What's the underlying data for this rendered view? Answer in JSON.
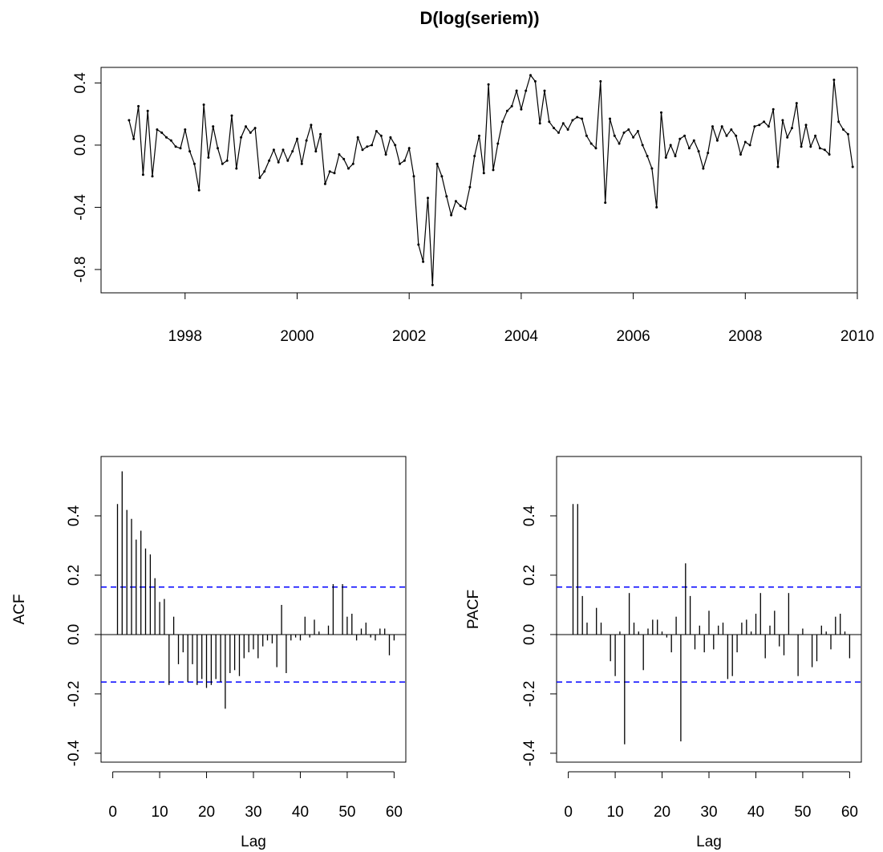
{
  "title": "D(log(seriem))",
  "colors": {
    "series": "#000000",
    "confidence_band": "#0000ff",
    "frame": "#000000"
  },
  "chart_data": [
    {
      "type": "line",
      "name": "time-series",
      "title": "D(log(seriem))",
      "xlabel": "",
      "ylabel": "",
      "xlim": [
        1996.5,
        2010
      ],
      "ylim": [
        -0.95,
        0.5
      ],
      "x_ticks": [
        "1998",
        "2000",
        "2002",
        "2004",
        "2006",
        "2008",
        "2010"
      ],
      "y_ticks": [
        "-0.8",
        "-0.4",
        "0.0",
        "0.4"
      ],
      "start": 1997.0,
      "frequency": 12,
      "markers": "small points",
      "values": [
        0.16,
        0.04,
        0.25,
        -0.19,
        0.22,
        -0.2,
        0.1,
        0.08,
        0.05,
        0.03,
        -0.01,
        -0.02,
        0.1,
        -0.04,
        -0.12,
        -0.29,
        0.26,
        -0.08,
        0.12,
        -0.02,
        -0.12,
        -0.1,
        0.19,
        -0.15,
        0.05,
        0.12,
        0.08,
        0.11,
        -0.21,
        -0.17,
        -0.1,
        -0.03,
        -0.11,
        -0.03,
        -0.1,
        -0.04,
        0.04,
        -0.12,
        0.03,
        0.13,
        -0.04,
        0.07,
        -0.25,
        -0.17,
        -0.18,
        -0.06,
        -0.09,
        -0.15,
        -0.12,
        0.05,
        -0.03,
        -0.01,
        0.0,
        0.09,
        0.06,
        -0.06,
        0.05,
        0.0,
        -0.12,
        -0.1,
        -0.02,
        -0.2,
        -0.64,
        -0.75,
        -0.34,
        -0.9,
        -0.12,
        -0.2,
        -0.33,
        -0.45,
        -0.36,
        -0.39,
        -0.41,
        -0.27,
        -0.07,
        0.06,
        -0.18,
        0.39,
        -0.16,
        0.01,
        0.15,
        0.22,
        0.25,
        0.35,
        0.23,
        0.35,
        0.45,
        0.41,
        0.14,
        0.35,
        0.15,
        0.11,
        0.08,
        0.14,
        0.1,
        0.16,
        0.18,
        0.17,
        0.06,
        0.01,
        -0.02,
        0.41,
        -0.37,
        0.17,
        0.06,
        0.01,
        0.08,
        0.1,
        0.05,
        0.09,
        0.0,
        -0.07,
        -0.15,
        -0.4,
        0.21,
        -0.08,
        0.0,
        -0.07,
        0.04,
        0.06,
        -0.02,
        0.03,
        -0.04,
        -0.15,
        -0.05,
        0.12,
        0.03,
        0.12,
        0.06,
        0.1,
        0.06,
        -0.06,
        0.02,
        0.0,
        0.12,
        0.13,
        0.15,
        0.12,
        0.23,
        -0.14,
        0.16,
        0.05,
        0.11,
        0.27,
        -0.01,
        0.13,
        -0.01,
        0.06,
        -0.02,
        -0.03,
        -0.06,
        0.42,
        0.15,
        0.1,
        0.07,
        -0.14
      ]
    },
    {
      "type": "bar",
      "name": "acf",
      "xlabel": "Lag",
      "ylabel": "ACF",
      "xlim": [
        -2.5,
        62.5
      ],
      "ylim": [
        -0.43,
        0.6
      ],
      "x_ticks": [
        "0",
        "10",
        "20",
        "30",
        "40",
        "50",
        "60"
      ],
      "y_ticks": [
        "-0.4",
        "-0.2",
        "0.0",
        "0.2",
        "0.4"
      ],
      "confidence_limit": 0.16,
      "lags": [
        1,
        2,
        3,
        4,
        5,
        6,
        7,
        8,
        9,
        10,
        11,
        12,
        13,
        14,
        15,
        16,
        17,
        18,
        19,
        20,
        21,
        22,
        23,
        24,
        25,
        26,
        27,
        28,
        29,
        30,
        31,
        32,
        33,
        34,
        35,
        36,
        37,
        38,
        39,
        40,
        41,
        42,
        43,
        44,
        45,
        46,
        47,
        48,
        49,
        50,
        51,
        52,
        53,
        54,
        55,
        56,
        57,
        58,
        59,
        60
      ],
      "values": [
        0.44,
        0.55,
        0.42,
        0.39,
        0.32,
        0.35,
        0.29,
        0.27,
        0.19,
        0.11,
        0.12,
        -0.17,
        0.06,
        -0.1,
        -0.06,
        -0.16,
        -0.1,
        -0.17,
        -0.15,
        -0.18,
        -0.17,
        -0.15,
        -0.16,
        -0.25,
        -0.13,
        -0.12,
        -0.14,
        -0.08,
        -0.06,
        -0.05,
        -0.08,
        -0.04,
        -0.02,
        -0.03,
        -0.11,
        0.1,
        -0.13,
        -0.02,
        -0.01,
        -0.02,
        0.06,
        -0.01,
        0.05,
        0.01,
        0.0,
        0.03,
        0.17,
        0.0,
        0.17,
        0.06,
        0.07,
        -0.02,
        0.02,
        0.04,
        -0.01,
        -0.02,
        0.02,
        0.02,
        -0.07,
        -0.02
      ]
    },
    {
      "type": "bar",
      "name": "pacf",
      "xlabel": "Lag",
      "ylabel": "PACF",
      "xlim": [
        -2.5,
        62.5
      ],
      "ylim": [
        -0.43,
        0.6
      ],
      "x_ticks": [
        "0",
        "10",
        "20",
        "30",
        "40",
        "50",
        "60"
      ],
      "y_ticks": [
        "-0.4",
        "-0.2",
        "0.0",
        "0.2",
        "0.4"
      ],
      "confidence_limit": 0.16,
      "lags": [
        1,
        2,
        3,
        4,
        5,
        6,
        7,
        8,
        9,
        10,
        11,
        12,
        13,
        14,
        15,
        16,
        17,
        18,
        19,
        20,
        21,
        22,
        23,
        24,
        25,
        26,
        27,
        28,
        29,
        30,
        31,
        32,
        33,
        34,
        35,
        36,
        37,
        38,
        39,
        40,
        41,
        42,
        43,
        44,
        45,
        46,
        47,
        48,
        49,
        50,
        51,
        52,
        53,
        54,
        55,
        56,
        57,
        58,
        59,
        60
      ],
      "values": [
        0.44,
        0.44,
        0.13,
        0.04,
        0.0,
        0.09,
        0.04,
        0.0,
        -0.09,
        -0.14,
        0.01,
        -0.37,
        0.14,
        0.04,
        0.01,
        -0.12,
        0.02,
        0.05,
        0.05,
        0.01,
        -0.01,
        -0.06,
        0.06,
        -0.36,
        0.24,
        0.13,
        -0.05,
        0.03,
        -0.06,
        0.08,
        -0.05,
        0.03,
        0.04,
        -0.15,
        -0.14,
        -0.06,
        0.04,
        0.05,
        0.01,
        0.07,
        0.14,
        -0.08,
        0.03,
        0.08,
        -0.04,
        -0.07,
        0.14,
        0.0,
        -0.14,
        0.02,
        0.0,
        -0.11,
        -0.09,
        0.03,
        0.01,
        -0.05,
        0.06,
        0.07,
        0.01,
        -0.08
      ]
    }
  ]
}
